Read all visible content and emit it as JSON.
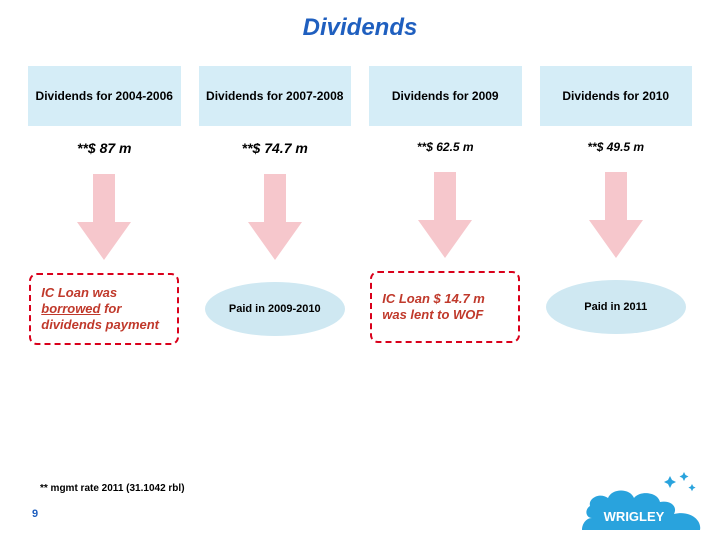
{
  "title": "Dividends",
  "title_color": "#1f5fbf",
  "header_bg": "#d5edf7",
  "amount_fontsize_large": "14px",
  "amount_fontsize_small": "12px",
  "arrow_fill": "#f6c7cc",
  "dashed_border_color": "#d9001b",
  "dashed_text_color": "#c0392b",
  "ellipse_bg": "#cfe8f2",
  "pagenum_color": "#1f5fbf",
  "logo": {
    "cloud_fill": "#29a3dd",
    "text_fill": "#ffffff",
    "label": "WRIGLEY"
  },
  "columns": [
    {
      "header": "Dividends for 2004-2006",
      "amount": "**$ 87 m",
      "amount_size": "large",
      "outcome_type": "dashed",
      "outcome_lines": [
        "IC Loan was ",
        "borrowed",
        " for dividends payment"
      ],
      "underline_index": 1
    },
    {
      "header": "Dividends for 2007-2008",
      "amount": "**$ 74.7 m",
      "amount_size": "large",
      "outcome_type": "ellipse",
      "outcome_text": "Paid in 2009-2010"
    },
    {
      "header": "Dividends for 2009",
      "amount": "**$ 62.5 m",
      "amount_size": "small",
      "outcome_type": "dashed",
      "outcome_lines": [
        "IC Loan $ 14.7 m was lent to WOF"
      ],
      "underline_index": -1
    },
    {
      "header": "Dividends for 2010",
      "amount": "**$ 49.5 m",
      "amount_size": "small",
      "outcome_type": "ellipse",
      "outcome_text": "Paid in 2011"
    }
  ],
  "footnote": "** mgmt rate 2011 (31.1042 rbl)",
  "page_number": "9"
}
